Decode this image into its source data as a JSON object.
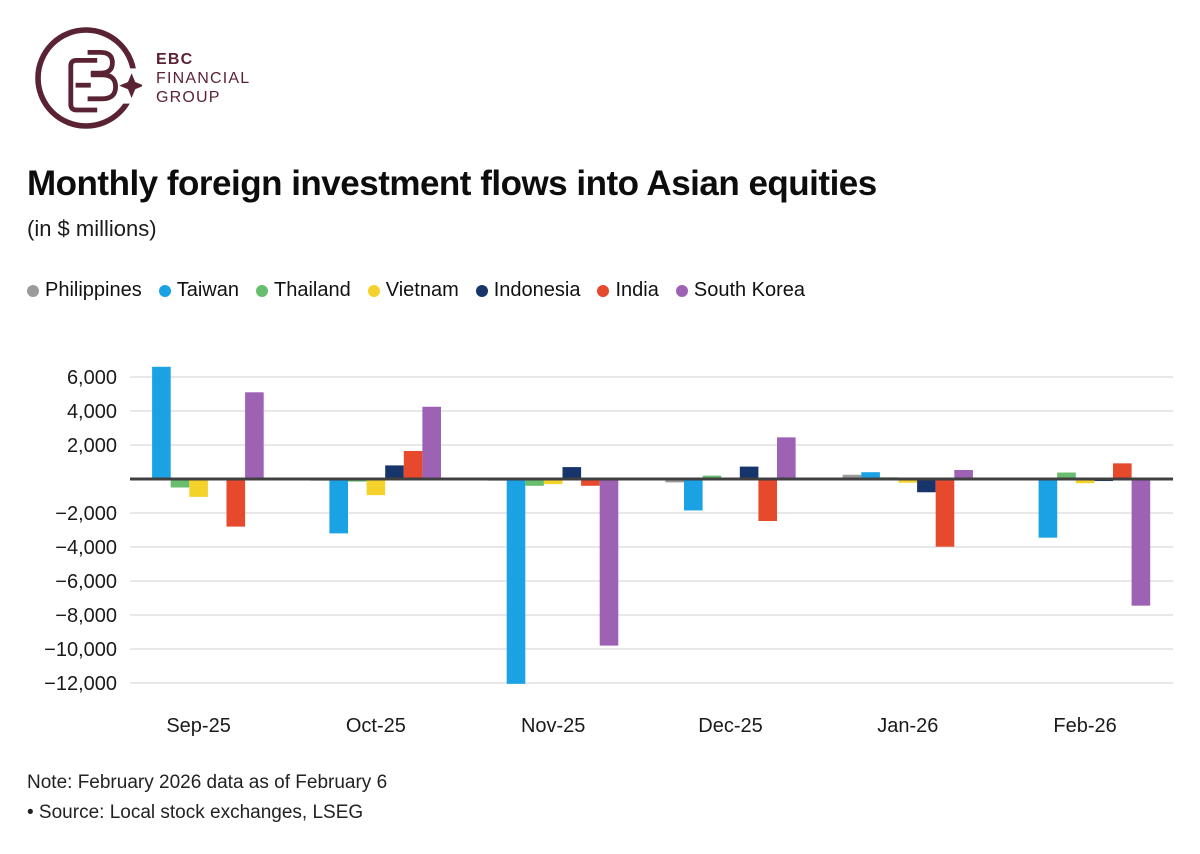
{
  "logo": {
    "line1": "EBC",
    "line2": "FINANCIAL",
    "line3": "GROUP",
    "color": "#5A2333"
  },
  "title": "Monthly foreign investment flows into Asian equities",
  "subtitle": "(in $ millions)",
  "notes": [
    "Note: February 2026 data as of February 6",
    "• Source: Local stock exchanges, LSEG"
  ],
  "chart_data": {
    "type": "bar",
    "title": "Monthly foreign investment flows into Asian equities",
    "unit": "$ millions",
    "categories": [
      "Sep-25",
      "Oct-25",
      "Nov-25",
      "Dec-25",
      "Jan-26",
      "Feb-26"
    ],
    "series": [
      {
        "name": "Philippines",
        "color": "#9B9B9B",
        "values": [
          0,
          -100,
          -100,
          -200,
          250,
          0
        ]
      },
      {
        "name": "Taiwan",
        "color": "#1BA2E4",
        "values": [
          6600,
          -3200,
          -12050,
          -1850,
          400,
          -3450
        ]
      },
      {
        "name": "Thailand",
        "color": "#68BD6E",
        "values": [
          -500,
          -150,
          -400,
          200,
          100,
          380
        ]
      },
      {
        "name": "Vietnam",
        "color": "#F5D22B",
        "values": [
          -1050,
          -950,
          -300,
          0,
          -220,
          -250
        ]
      },
      {
        "name": "Indonesia",
        "color": "#17356B",
        "values": [
          0,
          800,
          700,
          730,
          -780,
          -120
        ]
      },
      {
        "name": "India",
        "color": "#E6492B",
        "values": [
          -2800,
          1650,
          -400,
          -2470,
          -3980,
          920
        ]
      },
      {
        "name": "South Korea",
        "color": "#9D62B4",
        "values": [
          5100,
          4250,
          -9800,
          2450,
          530,
          -7450
        ]
      }
    ],
    "y_ticks": [
      6000,
      4000,
      2000,
      0,
      -2000,
      -4000,
      -6000,
      -8000,
      -10000,
      -12000
    ],
    "y_tick_labels": [
      "6,000",
      "4,000",
      "2,000",
      "",
      "−2,000",
      "−4,000",
      "−6,000",
      "−8,000",
      "−10,000",
      "−12,000"
    ],
    "ylim": [
      -12600,
      7000
    ],
    "grid": true,
    "zero_line_color": "#404040",
    "grid_color": "#D9D9D9",
    "legend_position": "top-left"
  }
}
